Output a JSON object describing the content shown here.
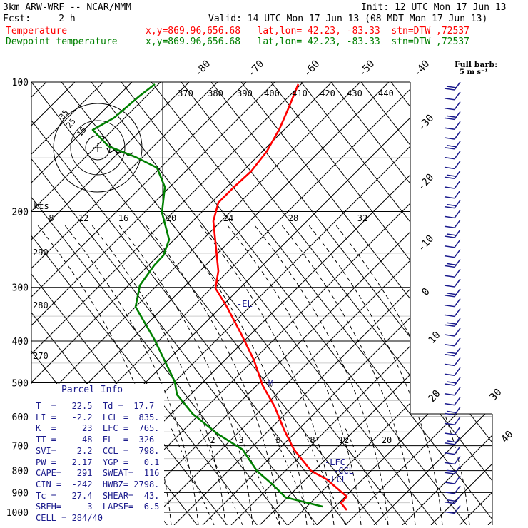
{
  "header": {
    "line1_left": "3km ARW-WRF -- NCAR/MMM",
    "line1_right": "Init: 12 UTC Mon 17 Jun 13",
    "line2_left": "Fcst:     2 h",
    "line2_right": "Valid: 14 UTC Mon 17 Jun 13 (08 MDT Mon 17 Jun 13)",
    "temp_label": "Temperature",
    "temp_info": "x,y=869.96,656.68   lat,lon= 42.23, -83.33  stn=DTW ,72537",
    "dew_label": "Dewpoint temperature",
    "dew_info": "x,y=869.96,656.68   lat,lon= 42.23, -83.33  stn=DTW ,72537",
    "colors": {
      "temp": "#ff0000",
      "dew": "#008000",
      "text": "#000000",
      "wind": "#1a1a8c"
    }
  },
  "chart_data": {
    "type": "line",
    "pressure_levels": [
      100,
      200,
      300,
      400,
      500,
      600,
      700,
      800,
      900,
      1000
    ],
    "temperature_tick_labels": [
      "-80",
      "-70",
      "-60",
      "-50",
      "-40",
      "-30",
      "-20",
      "-10",
      "0",
      "10",
      "20",
      "30",
      "40"
    ],
    "theta_labels": [
      "370",
      "380",
      "390",
      "400",
      "410",
      "420",
      "430",
      "440"
    ],
    "mixing_ratio_labels": [
      "2",
      "3",
      "5",
      "8",
      "12",
      "20"
    ],
    "kts_label": "kts",
    "hodograph_speed_labels": [
      "8",
      "12",
      "16",
      "20",
      "24",
      "28",
      "32"
    ],
    "height_labels": [
      "290",
      "280",
      "270"
    ],
    "hodo_ring_labels": [
      "35",
      "25",
      "15"
    ],
    "parcel_markers": [
      "EL",
      "LFC",
      "CCL",
      "LCL"
    ],
    "mid_marker": "M",
    "full_barb_label": "Full barb:",
    "full_barb_value": "5 m s⁻¹",
    "series": [
      {
        "name": "Temperature",
        "color": "#ff0000",
        "points": [
          [
            418,
            118
          ],
          [
            405,
            150
          ],
          [
            392,
            180
          ],
          [
            374,
            212
          ],
          [
            352,
            240
          ],
          [
            328,
            262
          ],
          [
            306,
            284
          ],
          [
            299,
            310
          ],
          [
            303,
            350
          ],
          [
            306,
            380
          ],
          [
            302,
            404
          ],
          [
            318,
            430
          ],
          [
            338,
            468
          ],
          [
            356,
            505
          ],
          [
            368,
            540
          ],
          [
            385,
            570
          ],
          [
            398,
            602
          ],
          [
            412,
            630
          ],
          [
            436,
            660
          ],
          [
            458,
            672
          ],
          [
            486,
            696
          ],
          [
            478,
            705
          ],
          [
            486,
            715
          ]
        ]
      },
      {
        "name": "Dewpoint temperature",
        "color": "#008000",
        "points": [
          [
            217,
            118
          ],
          [
            195,
            135
          ],
          [
            160,
            165
          ],
          [
            130,
            182
          ],
          [
            152,
            205
          ],
          [
            190,
            220
          ],
          [
            220,
            235
          ],
          [
            231,
            262
          ],
          [
            227,
            298
          ],
          [
            237,
            336
          ],
          [
            229,
            358
          ],
          [
            216,
            372
          ],
          [
            196,
            400
          ],
          [
            190,
            430
          ],
          [
            216,
            475
          ],
          [
            245,
            535
          ],
          [
            248,
            553
          ],
          [
            270,
            580
          ],
          [
            305,
            608
          ],
          [
            340,
            630
          ],
          [
            360,
            660
          ],
          [
            383,
            680
          ],
          [
            400,
            697
          ],
          [
            452,
            710
          ]
        ]
      }
    ]
  },
  "parcel_info": {
    "title": "Parcel Info",
    "rows": [
      "T  =   22.5  Td =  17.7",
      "LI =   -2.2  LCL =  835.",
      "K  =     23  LFC =  765.",
      "TT =     48  EL  =  326",
      "SVI=    2.2  CCL =  798.",
      "PW =   2.17  YGP =   0.1",
      "CAPE=   291  SWEAT=  116",
      "CIN =  -242  HWBZ= 2798.",
      "Tc =   27.4  SHEAR=  43.",
      "SREH=     3  LAPSE=  6.5",
      "CELL = 284/40"
    ]
  }
}
